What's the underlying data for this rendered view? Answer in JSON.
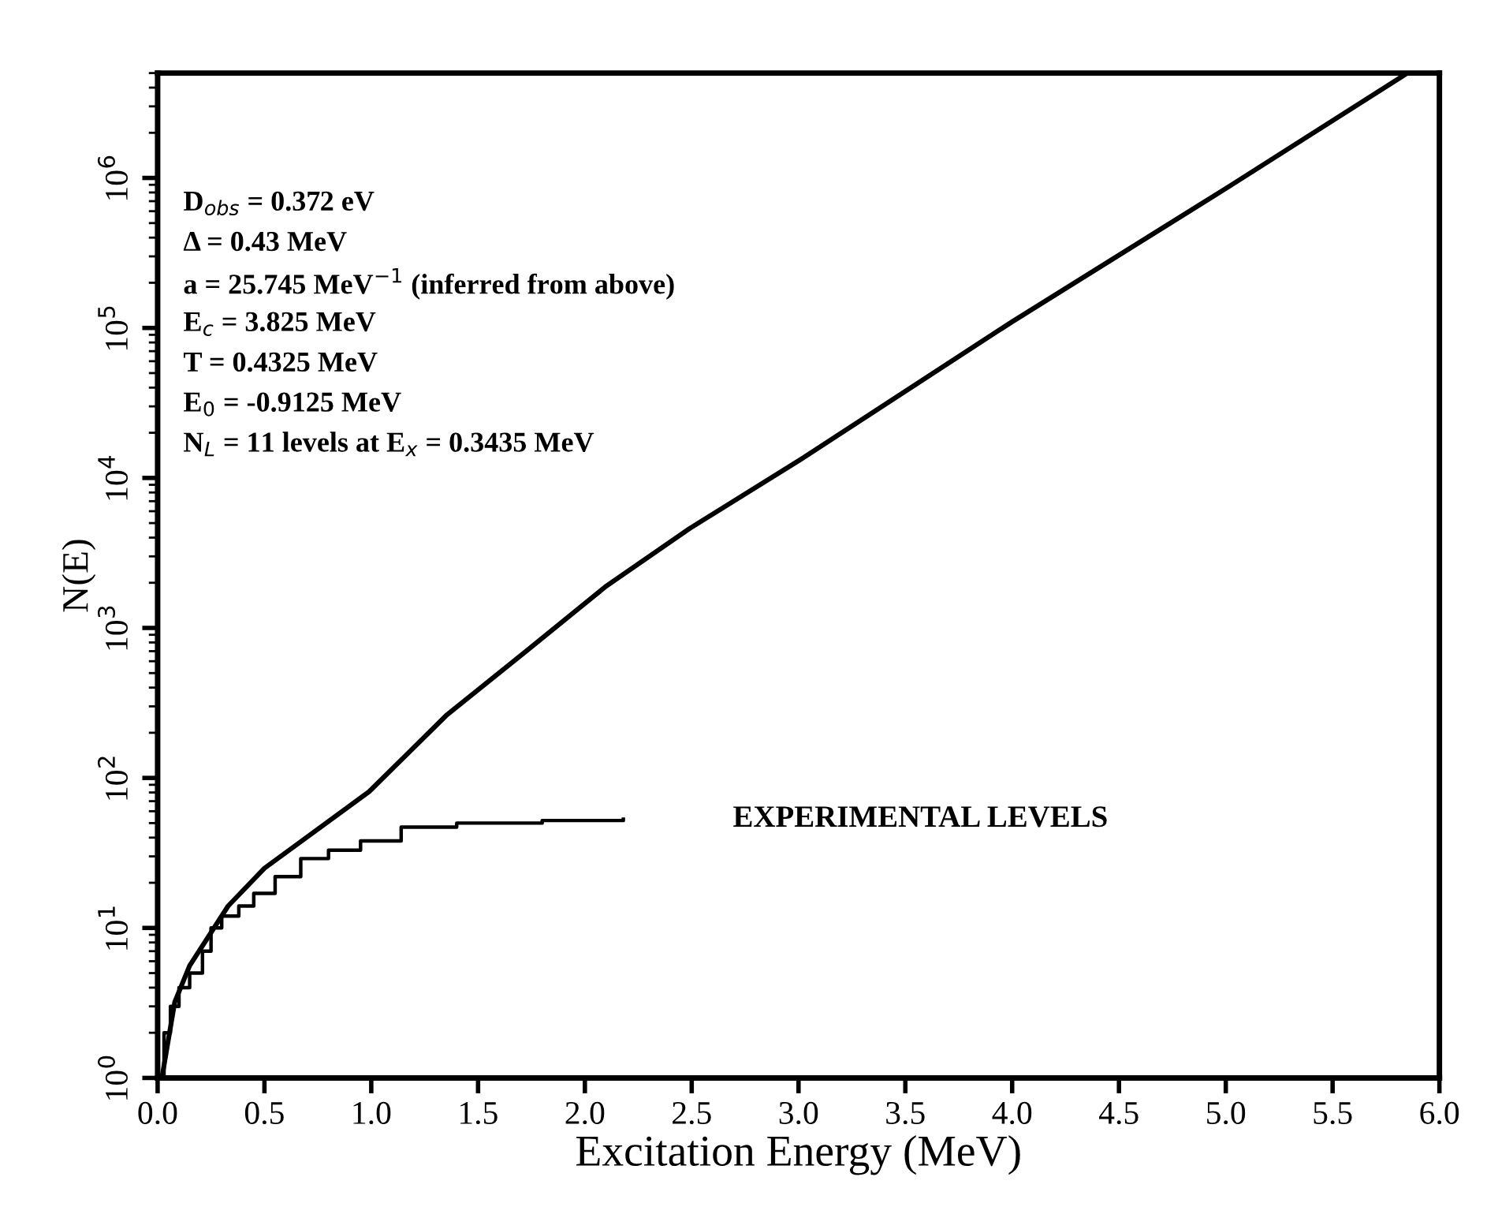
{
  "chart_data": {
    "type": "line",
    "xlabel": "Excitation Energy (MeV)",
    "ylabel": "N(E)",
    "log": "y",
    "xlim": [
      0,
      6
    ],
    "xticks": [
      {
        "value": 0,
        "label": "0.0"
      },
      {
        "value": 0.5,
        "label": "0.5"
      },
      {
        "value": 1,
        "label": "1.0"
      },
      {
        "value": 1.5,
        "label": "1.5"
      },
      {
        "value": 2,
        "label": "2.0"
      },
      {
        "value": 2.5,
        "label": "2.5"
      },
      {
        "value": 3,
        "label": "3.0"
      },
      {
        "value": 3.5,
        "label": "3.5"
      },
      {
        "value": 4,
        "label": "4.0"
      },
      {
        "value": 4.5,
        "label": "4.5"
      },
      {
        "value": 5,
        "label": "5.0"
      },
      {
        "value": 5.5,
        "label": "5.5"
      },
      {
        "value": 6,
        "label": "6.0"
      }
    ],
    "ylim": [
      1,
      5000000
    ],
    "yticks": [
      {
        "value": 1,
        "label": "10$^{0}$"
      },
      {
        "value": 10,
        "label": "10$^{1}$"
      },
      {
        "value": 100,
        "label": "10$^{2}$"
      },
      {
        "value": 1000,
        "label": "10$^{3}$"
      },
      {
        "value": 10000,
        "label": "10$^{4}$"
      },
      {
        "value": 100000,
        "label": "10$^{5}$"
      },
      {
        "value": 1000000,
        "label": "10$^{6}$"
      }
    ],
    "grid": false,
    "legend": false,
    "series": [
      {
        "color": "#000000",
        "x": [
          0.02,
          0.08,
          0.15,
          0.33,
          0.5,
          0.99,
          1.35,
          1.73,
          2.1,
          2.49,
          3.0,
          4.0,
          5.0,
          5.85
        ],
        "values": [
          1,
          3.2,
          5.6,
          14,
          25,
          81,
          260,
          710,
          1900,
          4600,
          13000,
          110000,
          850000,
          5000000
        ]
      },
      {
        "type": "step",
        "name": "EXPERIMENTAL LEVELS",
        "color": "#000000",
        "x": [
          0.0,
          0.03,
          0.06,
          0.1,
          0.15,
          0.21,
          0.25,
          0.3,
          0.38,
          0.45,
          0.55,
          0.67,
          0.8,
          0.95,
          1.14,
          1.4,
          1.8,
          2.18
        ],
        "values": [
          1,
          2,
          3,
          4,
          5,
          7,
          10,
          12,
          14,
          17,
          22,
          29,
          33,
          38,
          47,
          50,
          52,
          53
        ]
      }
    ],
    "annotations": [
      "D$_{obs}$ = 0.372 eV",
      "Δ = 0.43 MeV",
      "a = 25.745 MeV$^{−1}$ (inferred from above)",
      "E$_{c}$ = 3.825 MeV",
      "T = 0.4325 MeV",
      "E$_{0}$ = -0.9125 MeV",
      "N$_{L}$ = 11 levels at E$_{x}$ = 0.3435 MeV"
    ]
  }
}
